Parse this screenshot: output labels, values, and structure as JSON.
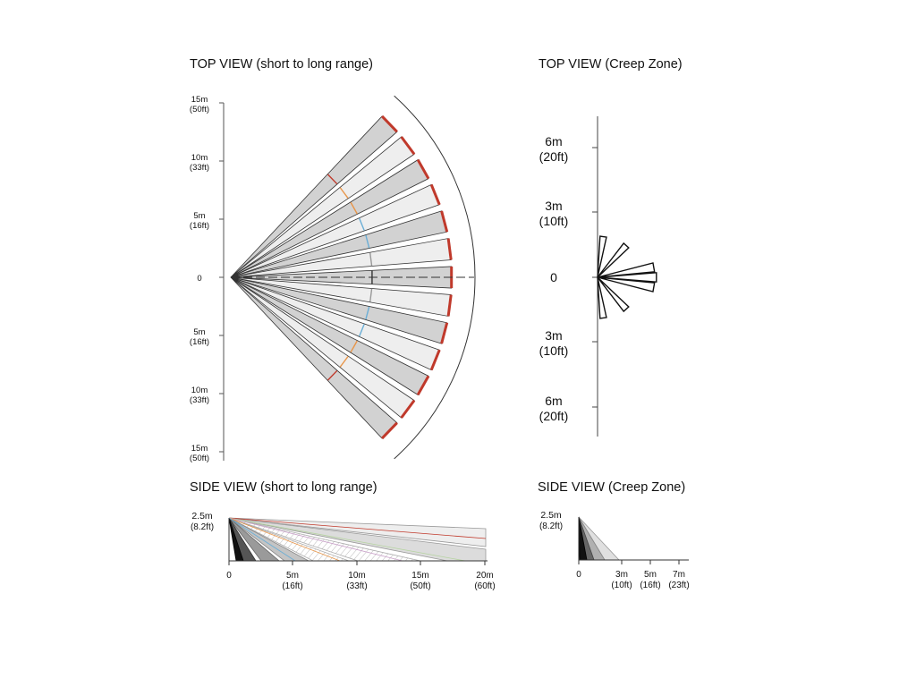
{
  "titles": {
    "top_long": "TOP VIEW (short to long range)",
    "top_creep": "TOP VIEW (Creep Zone)",
    "side_long": "SIDE VIEW (short to long range)",
    "side_creep": "SIDE VIEW (Creep Zone)"
  },
  "top_long_axis": {
    "labels": [
      {
        "m": "15m",
        "ft": "(50ft)"
      },
      {
        "m": "10m",
        "ft": "(33ft)"
      },
      {
        "m": "5m",
        "ft": "(16ft)"
      },
      {
        "m": "0",
        "ft": ""
      },
      {
        "m": "5m",
        "ft": "(16ft)"
      },
      {
        "m": "10m",
        "ft": "(33ft)"
      },
      {
        "m": "15m",
        "ft": "(50ft)"
      }
    ]
  },
  "top_creep_axis": {
    "labels": [
      {
        "m": "6m",
        "ft": "(20ft)"
      },
      {
        "m": "3m",
        "ft": "(10ft)"
      },
      {
        "m": "0",
        "ft": ""
      },
      {
        "m": "3m",
        "ft": "(10ft)"
      },
      {
        "m": "6m",
        "ft": "(20ft)"
      }
    ]
  },
  "side_long_axis": {
    "height_m": "2.5m",
    "height_ft": "(8.2ft)",
    "ticks": [
      {
        "m": "0",
        "ft": ""
      },
      {
        "m": "5m",
        "ft": "(16ft)"
      },
      {
        "m": "10m",
        "ft": "(33ft)"
      },
      {
        "m": "15m",
        "ft": "(50ft)"
      },
      {
        "m": "20m",
        "ft": "(60ft)"
      }
    ]
  },
  "side_creep_axis": {
    "height_m": "2.5m",
    "height_ft": "(8.2ft)",
    "ticks": [
      {
        "m": "0",
        "ft": ""
      },
      {
        "m": "3m",
        "ft": "(10ft)"
      },
      {
        "m": "5m",
        "ft": "(16ft)"
      },
      {
        "m": "7m",
        "ft": "(23ft)"
      }
    ]
  },
  "colors": {
    "beam_dark": "#d2d2d2",
    "beam_light": "#eeeeee",
    "outline": "#333333",
    "accent_red": "#c0392b",
    "accent_orange": "#e8964a",
    "accent_blue": "#6aaed6"
  }
}
